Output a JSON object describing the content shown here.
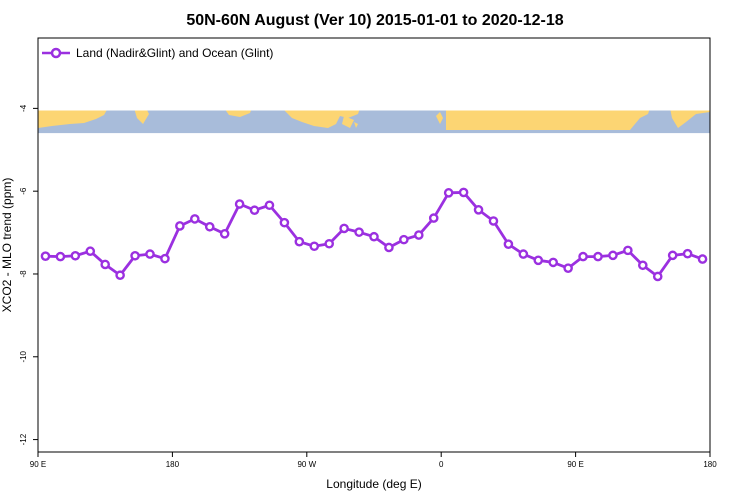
{
  "chart_data": {
    "type": "line",
    "title": "50N-60N August (Ver 10)   2015-01-01 to 2020-12-18",
    "xlabel": "Longitude (deg E)",
    "ylabel": "XCO2 - MLO trend (ppm)",
    "xlim": [
      90,
      540
    ],
    "ylim": [
      -12.3,
      -2.3
    ],
    "x_ticks": [
      {
        "value": 90,
        "label": "90 E"
      },
      {
        "value": 180,
        "label": "180"
      },
      {
        "value": 270,
        "label": "90 W"
      },
      {
        "value": 360,
        "label": "0"
      },
      {
        "value": 450,
        "label": "90 E"
      },
      {
        "value": 540,
        "label": "180"
      }
    ],
    "y_ticks": [
      {
        "value": -4,
        "label": "-4"
      },
      {
        "value": -6,
        "label": "-6"
      },
      {
        "value": -8,
        "label": "-8"
      },
      {
        "value": -10,
        "label": "-10"
      },
      {
        "value": -12,
        "label": "-12"
      }
    ],
    "map_strip": {
      "y_top": -4.05,
      "y_bottom": -4.6,
      "ocean_color": "#a8bcda",
      "land_color": "#fcd573"
    },
    "series": [
      {
        "name": "Land (Nadir&Glint) and Ocean (Glint)",
        "color": "#9b30e0",
        "x": [
          95,
          105,
          115,
          125,
          135,
          145,
          155,
          165,
          175,
          185,
          195,
          205,
          215,
          225,
          235,
          245,
          255,
          265,
          275,
          285,
          295,
          305,
          315,
          325,
          335,
          345,
          355,
          365,
          375,
          385,
          395,
          405,
          415,
          425,
          435,
          445,
          455,
          465,
          475,
          485,
          495,
          505,
          515,
          525,
          535
        ],
        "values": [
          -7.57,
          -7.58,
          -7.56,
          -7.45,
          -7.77,
          -8.03,
          -7.56,
          -7.52,
          -7.63,
          -6.84,
          -6.67,
          -6.86,
          -7.03,
          -6.31,
          -6.46,
          -6.34,
          -6.76,
          -7.22,
          -7.33,
          -7.27,
          -6.9,
          -6.99,
          -7.1,
          -7.36,
          -7.17,
          -7.06,
          -6.65,
          -6.04,
          -6.03,
          -6.45,
          -6.72,
          -7.28,
          -7.52,
          -7.67,
          -7.72,
          -7.86,
          -7.58,
          -7.58,
          -7.55,
          -7.43,
          -7.79,
          -8.06,
          -7.55,
          -7.51,
          -7.64
        ]
      }
    ]
  }
}
